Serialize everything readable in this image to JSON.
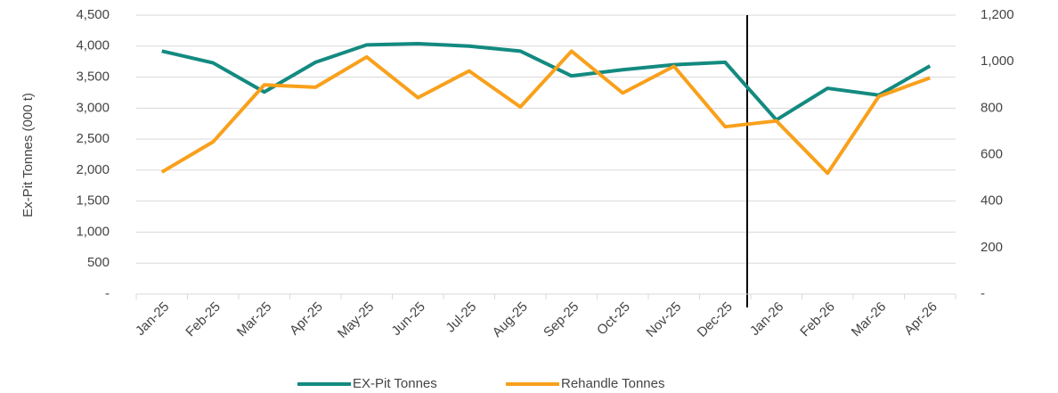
{
  "chart_data": {
    "type": "line",
    "y_label": "Ex-Pit Tonnes (000 t)",
    "categories": [
      "Jan-25",
      "Feb-25",
      "Mar-25",
      "Apr-25",
      "May-25",
      "Jun-25",
      "Jul-25",
      "Aug-25",
      "Sep-25",
      "Oct-25",
      "Nov-25",
      "Dec-25",
      "Jan-26",
      "Feb-26",
      "Mar-26",
      "Apr-26"
    ],
    "series": [
      {
        "name": "EX-Pit Tonnes",
        "color": "#138a80",
        "values": [
          3920,
          3730,
          3260,
          3740,
          4020,
          4040,
          4000,
          3920,
          3520,
          3620,
          3700,
          3740,
          2810,
          3320,
          3210,
          3680
        ]
      },
      {
        "name": "Rehandle Tonnes",
        "color": "#f9a01b",
        "axis": "y2",
        "values": [
          525,
          655,
          900,
          890,
          1020,
          845,
          960,
          805,
          1045,
          865,
          980,
          720,
          745,
          520,
          850,
          930
        ]
      }
    ],
    "ylim": [
      0,
      4500
    ],
    "yticks": [
      {
        "value": 0,
        "label": "-"
      },
      500,
      {
        "value": 1000,
        "label": "1,000"
      },
      {
        "value": 1500,
        "label": "1,500"
      },
      {
        "value": 2000,
        "label": "2,000"
      },
      {
        "value": 2500,
        "label": "2,500"
      },
      {
        "value": 3000,
        "label": "3,000"
      },
      {
        "value": 3500,
        "label": "3,500"
      },
      {
        "value": 4000,
        "label": "4,000"
      },
      {
        "value": 4500,
        "label": "4,500"
      }
    ],
    "y2lim": [
      0,
      1200
    ],
    "y2ticks": [
      {
        "value": 0,
        "label": "-"
      },
      200,
      400,
      600,
      800,
      {
        "value": 1000,
        "label": "1,000"
      },
      {
        "value": 1200,
        "label": "1,200"
      }
    ],
    "grid": true,
    "legend": "bottom"
  }
}
